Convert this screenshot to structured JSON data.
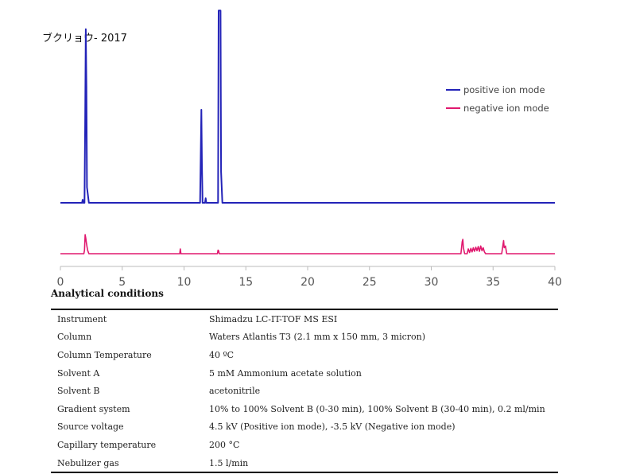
{
  "chart_data": {
    "type": "line",
    "title": "ブクリョウ- 2017",
    "xlim": [
      0,
      40
    ],
    "x_ticks": [
      "0",
      "5",
      "10",
      "15",
      "20",
      "25",
      "30",
      "35",
      "40"
    ],
    "series": [
      {
        "name": "positive ion mode",
        "color": "#2323b8",
        "points": [
          [
            0,
            0
          ],
          [
            1.75,
            0
          ],
          [
            1.8,
            0.02
          ],
          [
            1.85,
            0
          ],
          [
            1.95,
            0
          ],
          [
            2.0,
            0.5
          ],
          [
            2.05,
            1.12
          ],
          [
            2.1,
            0.75
          ],
          [
            2.15,
            0.1
          ],
          [
            2.3,
            0
          ],
          [
            11.3,
            0
          ],
          [
            11.35,
            0.3
          ],
          [
            11.4,
            0.6
          ],
          [
            11.45,
            0.25
          ],
          [
            11.5,
            0
          ],
          [
            11.7,
            0
          ],
          [
            11.75,
            0.03
          ],
          [
            11.8,
            0
          ],
          [
            12.75,
            0
          ],
          [
            12.8,
            1.24
          ],
          [
            12.85,
            1.24
          ],
          [
            12.9,
            1.24
          ],
          [
            12.95,
            1.24
          ],
          [
            13.0,
            0.2
          ],
          [
            13.1,
            0
          ],
          [
            40,
            0
          ]
        ]
      },
      {
        "name": "negative ion mode",
        "color": "#e0186e",
        "points": [
          [
            0,
            0
          ],
          [
            1.9,
            0
          ],
          [
            1.95,
            0.06
          ],
          [
            2.0,
            0.32
          ],
          [
            2.05,
            0.26
          ],
          [
            2.1,
            0.18
          ],
          [
            2.15,
            0.12
          ],
          [
            2.2,
            0.06
          ],
          [
            2.3,
            0
          ],
          [
            9.65,
            0
          ],
          [
            9.7,
            0.08
          ],
          [
            9.75,
            0
          ],
          [
            12.7,
            0
          ],
          [
            12.75,
            0.06
          ],
          [
            12.8,
            0.05
          ],
          [
            12.85,
            0
          ],
          [
            32.4,
            0
          ],
          [
            32.5,
            0.2
          ],
          [
            32.55,
            0.24
          ],
          [
            32.6,
            0.1
          ],
          [
            32.7,
            0
          ],
          [
            32.9,
            0
          ],
          [
            33.0,
            0.08
          ],
          [
            33.1,
            0.02
          ],
          [
            33.2,
            0.09
          ],
          [
            33.3,
            0.03
          ],
          [
            33.4,
            0.1
          ],
          [
            33.5,
            0.04
          ],
          [
            33.6,
            0.11
          ],
          [
            33.7,
            0.05
          ],
          [
            33.8,
            0.12
          ],
          [
            33.9,
            0.04
          ],
          [
            34.0,
            0.13
          ],
          [
            34.1,
            0.05
          ],
          [
            34.2,
            0.1
          ],
          [
            34.3,
            0.03
          ],
          [
            34.4,
            0
          ],
          [
            35.7,
            0
          ],
          [
            35.8,
            0.15
          ],
          [
            35.85,
            0.22
          ],
          [
            35.9,
            0.1
          ],
          [
            36.0,
            0.13
          ],
          [
            36.1,
            0
          ],
          [
            40,
            0
          ]
        ]
      }
    ],
    "legend_position": "top-right",
    "grid": false
  },
  "conditions": {
    "heading": "Analytical conditions",
    "rows": [
      {
        "key": "Instrument",
        "value": "Shimadzu LC-IT-TOF MS ESI"
      },
      {
        "key": "Column",
        "value": "Waters Atlantis T3 (2.1 mm x 150 mm, 3 micron)"
      },
      {
        "key": "Column Temperature",
        "value": "40 ºC"
      },
      {
        "key": "Solvent A",
        "value": "5 mM Ammonium acetate solution"
      },
      {
        "key": "Solvent B",
        "value": "acetonitrile"
      },
      {
        "key": "Gradient system",
        "value": "10% to 100% Solvent B (0-30 min), 100% Solvent B (30-40 min), 0.2 ml/min"
      },
      {
        "key": "Source voltage",
        "value": "4.5 kV (Positive ion mode), -3.5 kV (Negative ion mode)"
      },
      {
        "key": "Capillary temperature",
        "value": "200 °C"
      },
      {
        "key": "Nebulizer gas",
        "value": "1.5 l/min"
      }
    ]
  }
}
